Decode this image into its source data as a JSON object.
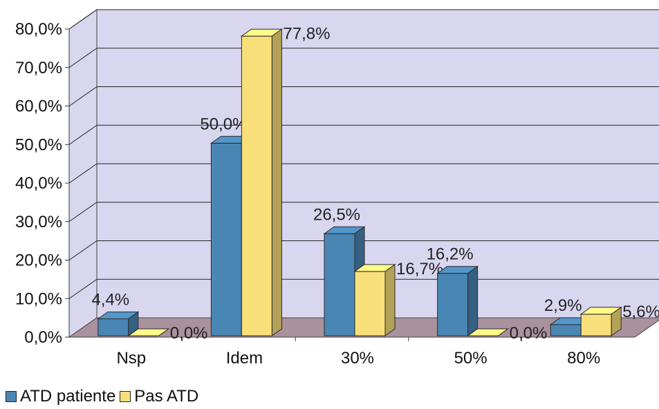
{
  "chart_data": {
    "type": "bar",
    "categories": [
      "Nsp",
      "Idem",
      "30%",
      "50%",
      "80%"
    ],
    "series": [
      {
        "name": "ATD patiente",
        "values": [
          4.4,
          50.0,
          26.5,
          16.2,
          2.9
        ],
        "labels": [
          "4,4%",
          "50,0%",
          "26,5%",
          "16,2%",
          "2,9%"
        ],
        "color": "#4a86b4"
      },
      {
        "name": "Pas ATD",
        "values": [
          0.0,
          77.8,
          16.7,
          0.0,
          5.6
        ],
        "labels": [
          "0,0%",
          "77,8%",
          "16,7%",
          "0,0%",
          "5,6%"
        ],
        "color": "#f9df7a"
      }
    ],
    "ylim": [
      0,
      80
    ],
    "y_ticks": [
      "0,0%",
      "10,0%",
      "20,0%",
      "30,0%",
      "40,0%",
      "50,0%",
      "60,0%",
      "70,0%",
      "80,0%"
    ],
    "grid": true,
    "legend_position": "bottom-left",
    "three_d": true,
    "colors": {
      "wall": "#d9d7ef",
      "floor": "#a9919d",
      "grid": "#222222"
    }
  }
}
